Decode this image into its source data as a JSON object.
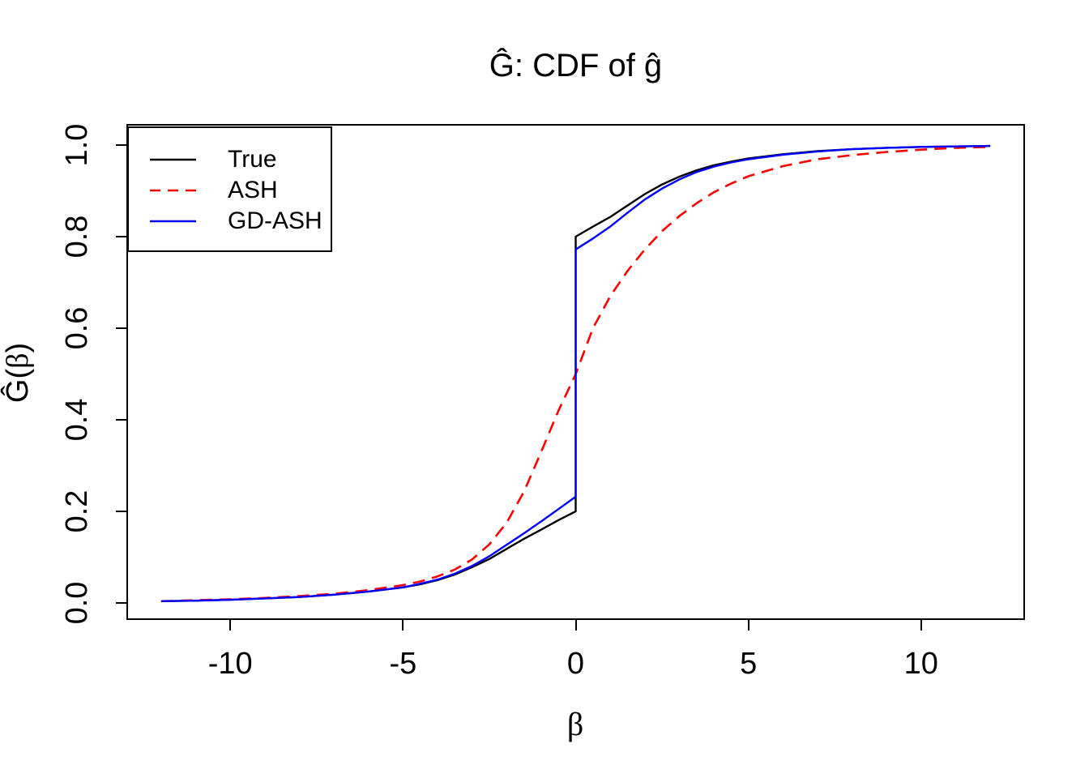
{
  "chart_data": {
    "type": "line",
    "title": "Ĝ: CDF of ĝ",
    "xlabel": "β",
    "ylabel": "Ĝ(β)",
    "xlim": [
      -12.96,
      12.96
    ],
    "ylim": [
      -0.0336,
      1.0425
    ],
    "grid": false,
    "x_ticks": [
      -10,
      -5,
      0,
      5,
      10
    ],
    "x_tick_labels": [
      "-10",
      "-5",
      "0",
      "5",
      "10"
    ],
    "y_ticks": [
      0.0,
      0.2,
      0.4,
      0.6,
      0.8,
      1.0
    ],
    "y_tick_labels": [
      "0.0",
      "0.2",
      "0.4",
      "0.6",
      "0.8",
      "1.0"
    ],
    "legend": {
      "position": "top-left",
      "entries": [
        {
          "label": "True",
          "color": "#000000",
          "dash": "solid"
        },
        {
          "label": "ASH",
          "color": "#ff0000",
          "dash": "dashed"
        },
        {
          "label": "GD-ASH",
          "color": "#0000ff",
          "dash": "solid"
        }
      ]
    },
    "series": [
      {
        "name": "True",
        "color": "#000000",
        "dash": "solid",
        "width": 2.4,
        "x": [
          -12,
          -11,
          -10,
          -9,
          -8,
          -7,
          -6,
          -5,
          -4.5,
          -4,
          -3.5,
          -3,
          -2.5,
          -2,
          -1.5,
          -1,
          -0.5,
          0,
          0,
          0.5,
          1,
          1.5,
          2,
          2.5,
          3,
          3.5,
          4,
          4.5,
          5,
          6,
          7,
          8,
          9,
          10,
          11,
          12
        ],
        "y": [
          0.004,
          0.005,
          0.007,
          0.01,
          0.013,
          0.018,
          0.025,
          0.034,
          0.041,
          0.05,
          0.062,
          0.078,
          0.096,
          0.118,
          0.14,
          0.16,
          0.181,
          0.2,
          0.8,
          0.822,
          0.843,
          0.868,
          0.893,
          0.914,
          0.931,
          0.945,
          0.956,
          0.964,
          0.971,
          0.98,
          0.987,
          0.991,
          0.994,
          0.996,
          0.997,
          0.998
        ]
      },
      {
        "name": "ASH",
        "color": "#ff0000",
        "dash": "dashed",
        "width": 2.6,
        "x": [
          -12,
          -11,
          -10,
          -9,
          -8,
          -7,
          -6,
          -5,
          -4.5,
          -4,
          -3.5,
          -3,
          -2.5,
          -2,
          -1.5,
          -1,
          -0.5,
          0,
          0.5,
          1,
          1.5,
          2,
          2.5,
          3,
          3.5,
          4,
          4.5,
          5,
          6,
          7,
          8,
          9,
          10,
          11,
          12
        ],
        "y": [
          0.004,
          0.006,
          0.008,
          0.011,
          0.015,
          0.02,
          0.028,
          0.039,
          0.047,
          0.058,
          0.073,
          0.095,
          0.128,
          0.175,
          0.243,
          0.33,
          0.42,
          0.5,
          0.6,
          0.67,
          0.725,
          0.772,
          0.812,
          0.845,
          0.873,
          0.897,
          0.916,
          0.932,
          0.954,
          0.969,
          0.978,
          0.985,
          0.99,
          0.994,
          0.996
        ]
      },
      {
        "name": "GD-ASH",
        "color": "#0000ff",
        "dash": "solid",
        "width": 2.4,
        "x": [
          -12,
          -11,
          -10,
          -9,
          -8,
          -7,
          -6,
          -5,
          -4.5,
          -4,
          -3.5,
          -3,
          -2.5,
          -2,
          -1.5,
          -1,
          -0.5,
          0,
          0,
          0.5,
          1,
          1.5,
          2,
          2.5,
          3,
          3.5,
          4,
          4.5,
          5,
          6,
          7,
          8,
          9,
          10,
          11,
          12
        ],
        "y": [
          0.004,
          0.005,
          0.007,
          0.01,
          0.013,
          0.018,
          0.025,
          0.034,
          0.042,
          0.051,
          0.064,
          0.081,
          0.102,
          0.127,
          0.152,
          0.178,
          0.205,
          0.232,
          0.772,
          0.796,
          0.822,
          0.852,
          0.881,
          0.905,
          0.925,
          0.941,
          0.953,
          0.962,
          0.969,
          0.979,
          0.986,
          0.991,
          0.994,
          0.996,
          0.997,
          0.998
        ]
      }
    ]
  }
}
